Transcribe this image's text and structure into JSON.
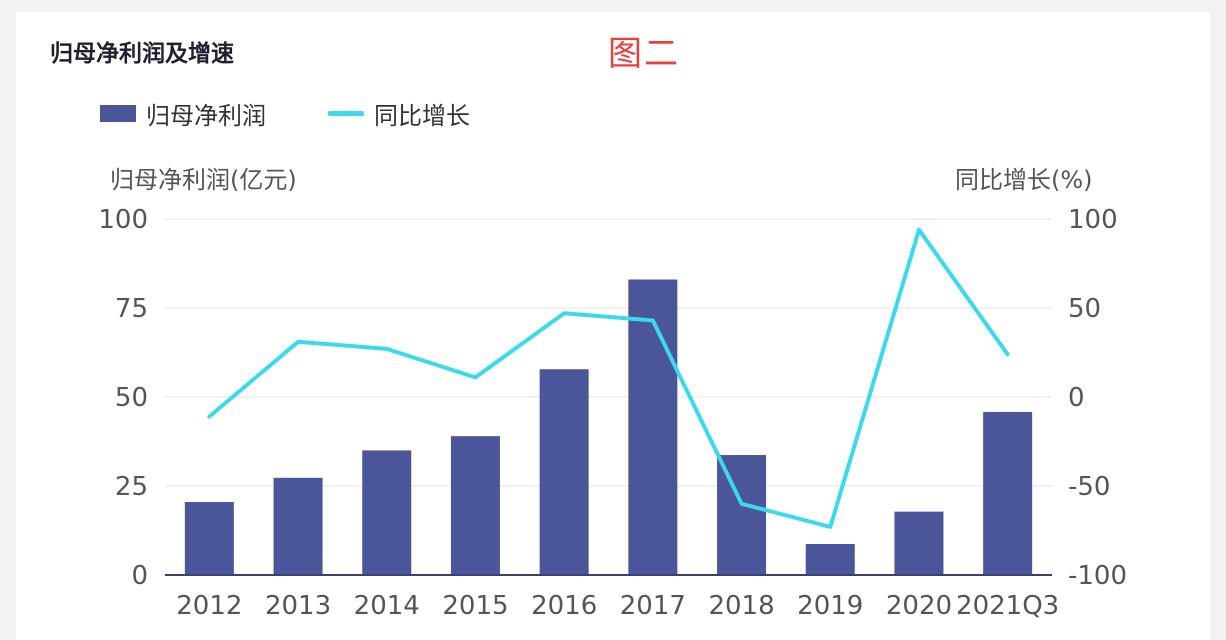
{
  "header": {
    "title": "归母净利润及增速",
    "badge": "图二"
  },
  "legend": {
    "bar_label": "归母净利润",
    "line_label": "同比增长"
  },
  "chart_data": {
    "type": "bar+line",
    "title": "归母净利润及增速",
    "categories": [
      "2012",
      "2013",
      "2014",
      "2015",
      "2016",
      "2017",
      "2018",
      "2019",
      "2020",
      "2021Q3"
    ],
    "y_left_label": "归母净利润(亿元)",
    "y_right_label": "同比增长(%)",
    "y_left_ticks": [
      "100",
      "75",
      "50",
      "25",
      "0"
    ],
    "y_right_ticks": [
      "100",
      "50",
      "0",
      "-50",
      "-100"
    ],
    "y_left_range": [
      0,
      100
    ],
    "y_right_range": [
      -100,
      100
    ],
    "grid": true,
    "legend_position": "top-left",
    "series": [
      {
        "name": "归母净利润",
        "kind": "bar",
        "axis": "left",
        "color": "#4a5699",
        "values": [
          20.5,
          27.3,
          35.0,
          39.0,
          57.8,
          83.0,
          33.7,
          8.7,
          17.8,
          45.8
        ]
      },
      {
        "name": "同比增长",
        "kind": "line",
        "axis": "right",
        "color": "#3ad9ee",
        "values": [
          -11,
          31,
          27,
          11,
          47,
          43,
          -60,
          -73,
          94,
          24
        ]
      }
    ]
  }
}
